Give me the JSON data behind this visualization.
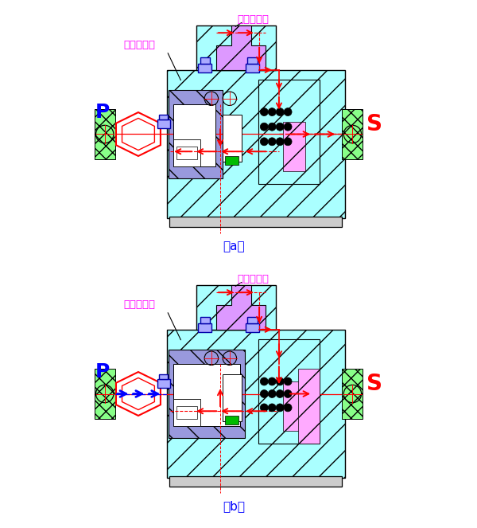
{
  "label_odd": "奇数档气管",
  "label_even": "偶数档气管",
  "label_P": "P",
  "label_S": "S",
  "label_a": "（a）",
  "label_b": "（b）",
  "color_cyan_fill": "#AAFFFF",
  "color_blue_piston": "#9999DD",
  "color_green_fill": "#88FF88",
  "color_purple_fill": "#DD99FF",
  "color_pink_fill": "#FFAAFF",
  "color_red": "#FF0000",
  "color_blue": "#0000FF",
  "color_black": "#000000",
  "color_white": "#FFFFFF",
  "color_magenta": "#FF00FF",
  "color_gray": "#CCCCCC",
  "color_bg": "#FFFFFF",
  "color_blue_bolt": "#AAAAFF",
  "color_blue_bolt_edge": "#0000AA"
}
